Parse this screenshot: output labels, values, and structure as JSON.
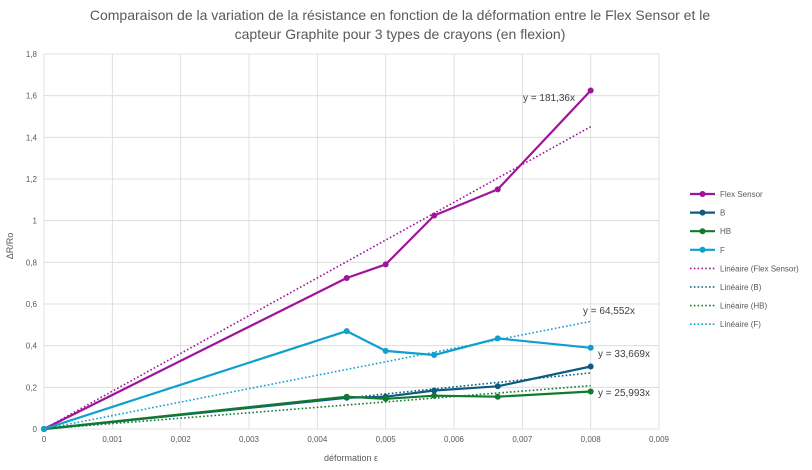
{
  "chart_data": {
    "type": "scatter",
    "title_line1": "Comparaison de la variation de la résistance en fonction de la déformation entre le Flex Sensor et le",
    "title_line2": "capteur Graphite pour 3 types de crayons (en flexion)",
    "xlabel": "déformation ε",
    "ylabel": "ΔR/Ro",
    "xlim": [
      0,
      0.009
    ],
    "ylim": [
      0,
      1.8
    ],
    "x_ticks": [
      "0",
      "0,001",
      "0,002",
      "0,003",
      "0,004",
      "0,005",
      "0,006",
      "0,007",
      "0,008",
      "0,009"
    ],
    "y_ticks": [
      "0",
      "0,2",
      "0,4",
      "0,6",
      "0,8",
      "1",
      "1,2",
      "1,4",
      "1,6",
      "1,8"
    ],
    "grid": "vertical and horizontal",
    "legend_position": "right",
    "series": [
      {
        "name": "Flex Sensor",
        "color": "#a0139b",
        "x": [
          0,
          0.00443,
          0.005,
          0.00571,
          0.00664,
          0.008
        ],
        "y": [
          0,
          0.725,
          0.79,
          1.025,
          1.15,
          1.625
        ]
      },
      {
        "name": "B",
        "color": "#0e5b80",
        "x": [
          0,
          0.00443,
          0.005,
          0.00571,
          0.00664,
          0.008
        ],
        "y": [
          0,
          0.15,
          0.155,
          0.185,
          0.205,
          0.3
        ]
      },
      {
        "name": "HB",
        "color": "#127a2e",
        "x": [
          0,
          0.00443,
          0.005,
          0.00571,
          0.00664,
          0.008
        ],
        "y": [
          0,
          0.155,
          0.145,
          0.16,
          0.155,
          0.18
        ]
      },
      {
        "name": "F",
        "color": "#0fa0cf",
        "x": [
          0,
          0.00443,
          0.005,
          0.00571,
          0.00664,
          0.008
        ],
        "y": [
          0,
          0.47,
          0.375,
          0.355,
          0.435,
          0.39
        ]
      }
    ],
    "trendlines": [
      {
        "name": "Linéaire (Flex Sensor)",
        "series": "Flex Sensor",
        "slope": 181.36,
        "equation": "y = 181,36x",
        "color": "#a0139b"
      },
      {
        "name": "Linéaire (B)",
        "series": "B",
        "slope": 33.669,
        "equation": "y = 33,669x",
        "color": "#0e5b80"
      },
      {
        "name": "Linéaire (HB)",
        "series": "HB",
        "slope": 25.993,
        "equation": "y = 25,993x",
        "color": "#127a2e"
      },
      {
        "name": "Linéaire (F)",
        "series": "F",
        "slope": 64.552,
        "equation": "y = 64,552x",
        "color": "#0fa0cf"
      }
    ]
  }
}
